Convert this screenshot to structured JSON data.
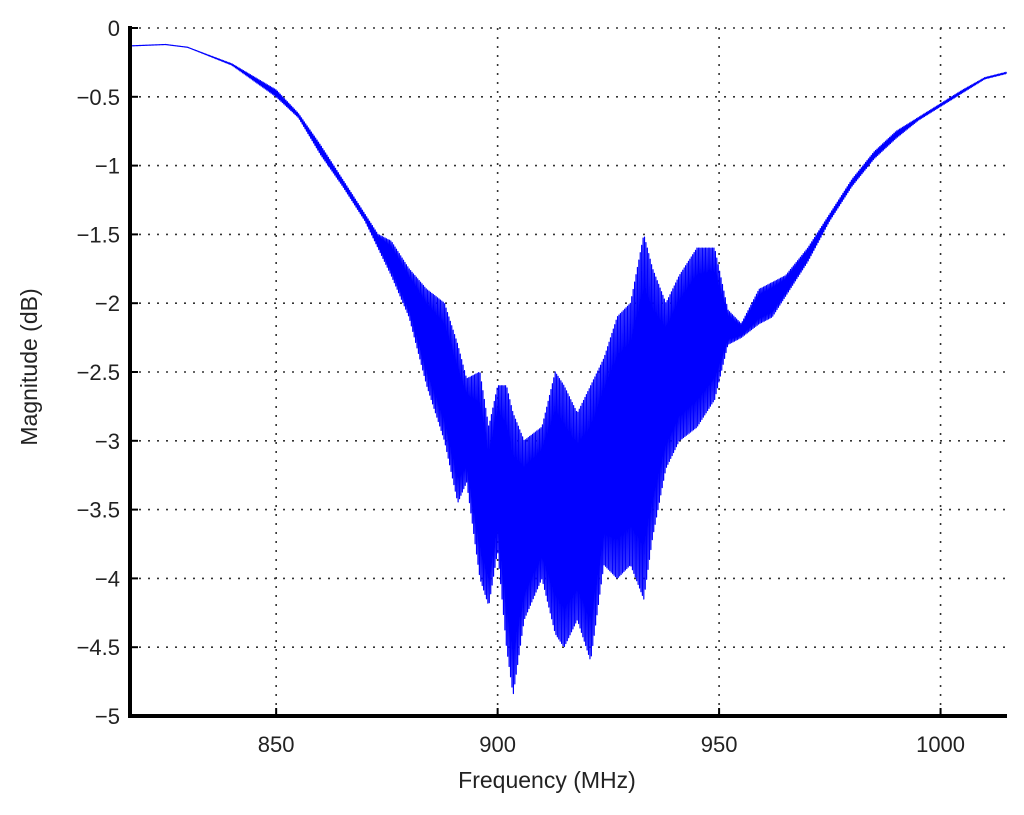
{
  "chart_data": {
    "type": "line",
    "xlabel": "Frequency (MHz)",
    "ylabel": "Magnitude (dB)",
    "xlim": [
      817,
      1015
    ],
    "ylim": [
      -5,
      0
    ],
    "xticks": [
      850,
      900,
      950,
      1000
    ],
    "xtick_labels": [
      "850",
      "900",
      "950",
      "1000"
    ],
    "yticks": [
      0,
      -0.5,
      -1,
      -1.5,
      -2,
      -2.5,
      -3,
      -3.5,
      -4,
      -4.5,
      -5
    ],
    "ytick_labels": [
      "0",
      "−0.5",
      "−1",
      "−1.5",
      "−2",
      "−2.5",
      "−3",
      "−3.5",
      "−4",
      "−4.5",
      "−5"
    ],
    "grid": true,
    "series": [
      {
        "color": "#0000ff",
        "envelope": {
          "x": [
            817,
            825,
            830,
            840,
            850,
            855,
            860,
            865,
            870,
            873,
            876,
            880,
            884,
            888,
            891,
            893,
            896,
            898,
            900,
            902,
            903.5,
            906,
            910,
            913,
            915,
            918,
            921,
            924,
            927,
            930,
            933,
            935,
            938,
            941,
            945,
            949,
            952,
            955,
            959,
            962,
            965,
            970,
            975,
            980,
            985,
            990,
            995,
            1000,
            1005,
            1010,
            1015
          ],
          "upper": [
            -0.13,
            -0.12,
            -0.14,
            -0.26,
            -0.45,
            -0.62,
            -0.85,
            -1.1,
            -1.35,
            -1.5,
            -1.55,
            -1.75,
            -1.9,
            -2.0,
            -2.3,
            -2.55,
            -2.5,
            -2.9,
            -2.6,
            -2.6,
            -2.8,
            -3.0,
            -2.9,
            -2.5,
            -2.6,
            -2.8,
            -2.6,
            -2.4,
            -2.1,
            -2.0,
            -1.5,
            -1.75,
            -2.0,
            -1.8,
            -1.6,
            -1.6,
            -2.05,
            -2.15,
            -1.9,
            -1.85,
            -1.8,
            -1.6,
            -1.35,
            -1.1,
            -0.9,
            -0.75,
            -0.65,
            -0.55,
            -0.45,
            -0.36,
            -0.32
          ],
          "lower": [
            -0.13,
            -0.12,
            -0.14,
            -0.27,
            -0.5,
            -0.65,
            -0.92,
            -1.15,
            -1.4,
            -1.6,
            -1.8,
            -2.1,
            -2.6,
            -3.0,
            -3.45,
            -3.3,
            -4.0,
            -4.2,
            -3.8,
            -4.5,
            -4.85,
            -4.3,
            -4.0,
            -4.4,
            -4.5,
            -4.3,
            -4.6,
            -3.9,
            -4.0,
            -3.9,
            -4.15,
            -3.7,
            -3.2,
            -3.0,
            -2.9,
            -2.7,
            -2.3,
            -2.25,
            -2.15,
            -2.1,
            -1.95,
            -1.7,
            -1.4,
            -1.15,
            -0.95,
            -0.8,
            -0.67,
            -0.57,
            -0.47,
            -0.37,
            -0.33
          ]
        }
      }
    ]
  }
}
